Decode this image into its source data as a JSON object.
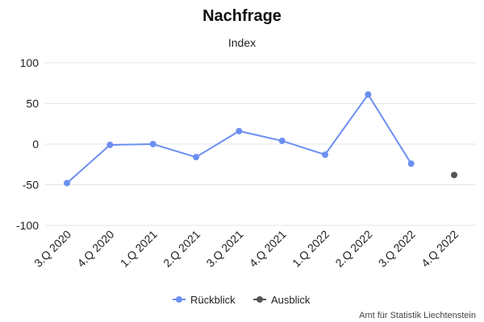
{
  "chart_data": {
    "type": "line",
    "title": "Nachfrage",
    "subtitle": "Index",
    "categories": [
      "3.Q 2020",
      "4.Q 2020",
      "1.Q 2021",
      "2.Q 2021",
      "3.Q 2021",
      "4.Q 2021",
      "1.Q 2022",
      "2.Q 2022",
      "3.Q 2022",
      "4.Q 2022"
    ],
    "ylim": [
      -100,
      100
    ],
    "yticks": [
      100,
      50,
      0,
      -50,
      -100
    ],
    "grid": true,
    "legend_position": "bottom-center",
    "series": [
      {
        "name": "Rückblick",
        "color": "#6b8ff2",
        "values": [
          -48,
          -1,
          0,
          -16,
          16,
          4,
          -13,
          61,
          -24,
          null
        ]
      },
      {
        "name": "Ausblick",
        "color": "#555555",
        "values": [
          null,
          null,
          null,
          null,
          null,
          null,
          null,
          null,
          null,
          -38
        ]
      }
    ],
    "credit": "Amt für Statistik Liechtenstein"
  }
}
